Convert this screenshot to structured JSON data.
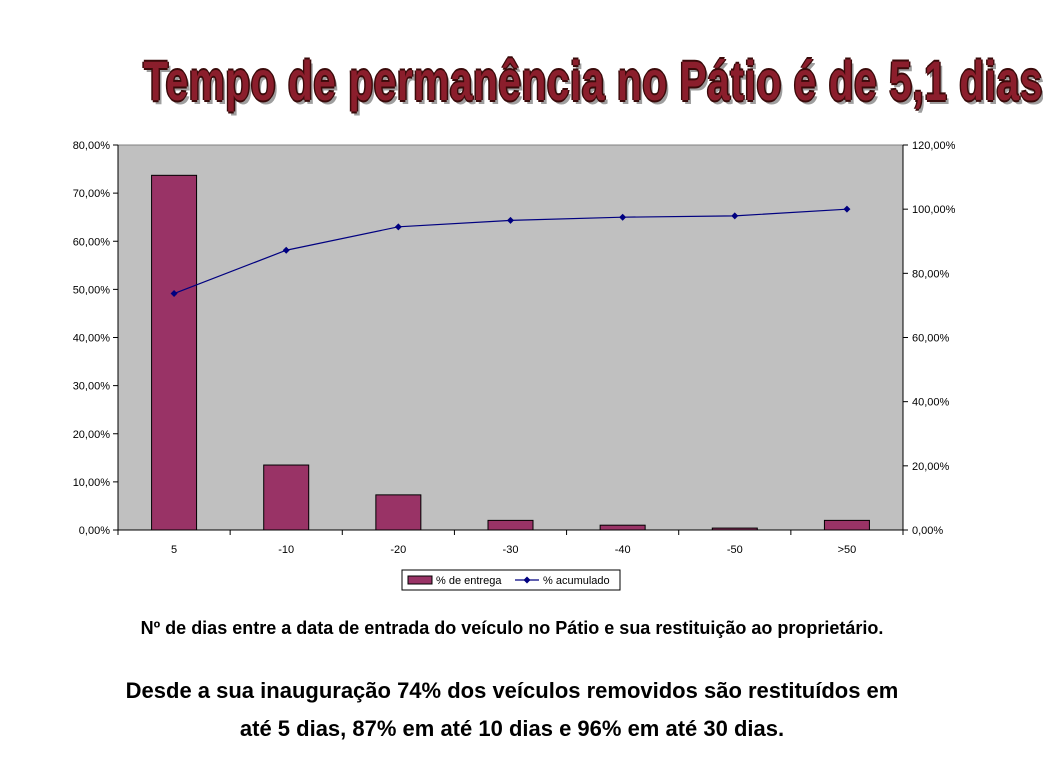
{
  "title": "Tempo de permanência no Pátio é de 5,1 dias",
  "caption": "Nº de dias entre a data de entrada do veículo no Pátio e sua restituição ao proprietário.",
  "summary_line1": "Desde a sua inauguração 74% dos veículos removidos são restituídos em",
  "summary_line2": "até 5 dias, 87% em até 10 dias e 96% em até 30 dias.",
  "colors": {
    "bar": "#993366",
    "line": "#000080",
    "plot_background": "#c0c0c0",
    "title": "#8b1e2c"
  },
  "chart_data": {
    "type": "bar",
    "categories": [
      "5",
      "-10",
      "-20",
      "-30",
      "-40",
      "-50",
      ">50"
    ],
    "series": [
      {
        "name": "% de entrega",
        "type": "bar",
        "axis": "left",
        "values": [
          73.7,
          13.5,
          7.3,
          2.0,
          1.0,
          0.4,
          2.0
        ]
      },
      {
        "name": "% acumulado",
        "type": "line",
        "axis": "right",
        "values": [
          73.7,
          87.2,
          94.5,
          96.5,
          97.5,
          97.9,
          100.0
        ]
      }
    ],
    "y_left": {
      "min": 0,
      "max": 80,
      "step": 10,
      "tick_labels": [
        "0,00%",
        "10,00%",
        "20,00%",
        "30,00%",
        "40,00%",
        "50,00%",
        "60,00%",
        "70,00%",
        "80,00%"
      ]
    },
    "y_right": {
      "min": 0,
      "max": 120,
      "step": 20,
      "tick_labels": [
        "0,00%",
        "20,00%",
        "40,00%",
        "60,00%",
        "80,00%",
        "100,00%",
        "120,00%"
      ]
    },
    "legend_position": "bottom",
    "grid": false
  }
}
